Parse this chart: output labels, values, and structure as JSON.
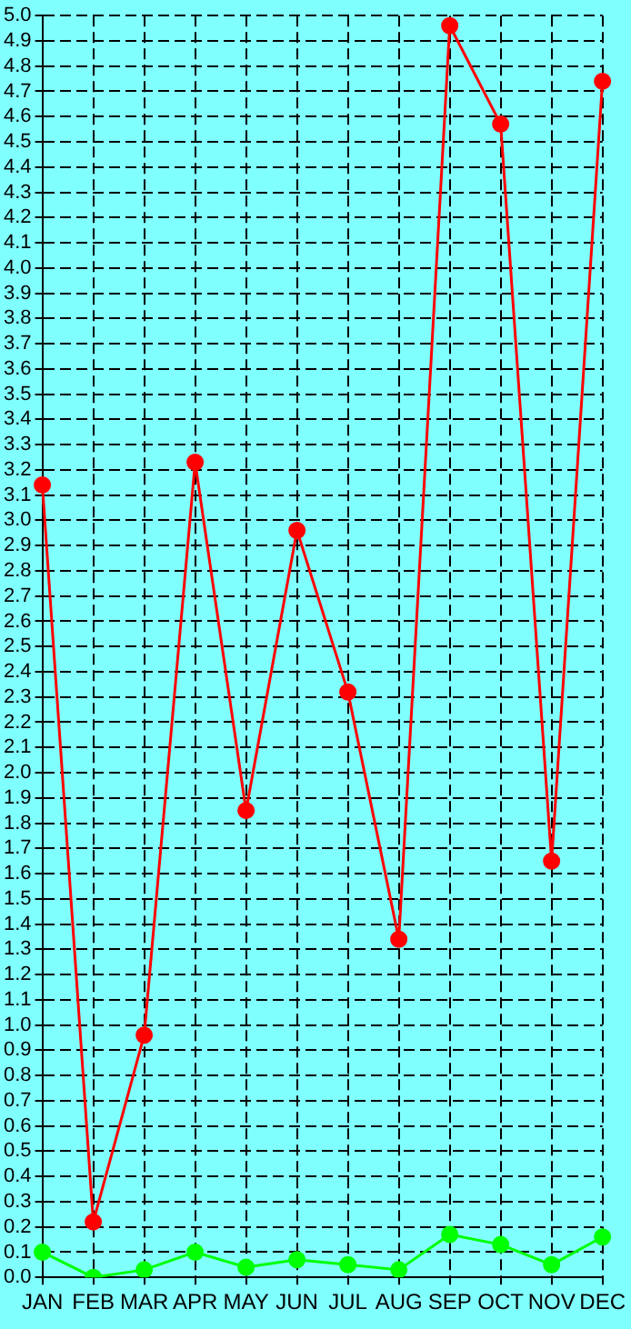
{
  "chart_data": {
    "type": "line",
    "categories": [
      "JAN",
      "FEB",
      "MAR",
      "APR",
      "MAY",
      "JUN",
      "JUL",
      "AUG",
      "SEP",
      "OCT",
      "NOV",
      "DEC"
    ],
    "series": [
      {
        "color": "#ff0000",
        "values": [
          3.14,
          0.22,
          0.96,
          3.23,
          1.85,
          2.96,
          2.32,
          1.34,
          4.96,
          4.57,
          1.65,
          4.74
        ]
      },
      {
        "color": "#00ff00",
        "values": [
          0.1,
          0.0,
          0.03,
          0.1,
          0.04,
          0.07,
          0.05,
          0.03,
          0.17,
          0.13,
          0.05,
          0.16
        ]
      }
    ],
    "ylim": [
      0,
      5.0
    ],
    "yticks": [
      {
        "value": 0,
        "label": "0.0"
      },
      0.1,
      0.2,
      0.3,
      0.4,
      0.5,
      0.6,
      0.7,
      0.8,
      0.9,
      {
        "value": 1,
        "label": "1.0"
      },
      1.1,
      1.2,
      1.3,
      1.4,
      1.5,
      1.6,
      1.7,
      1.8,
      1.9,
      {
        "value": 2,
        "label": "2.0"
      },
      2.1,
      2.2,
      2.3,
      2.4,
      2.5,
      2.6,
      2.7,
      2.8,
      2.9,
      {
        "value": 3,
        "label": "3.0"
      },
      3.1,
      3.2,
      3.3,
      3.4,
      3.5,
      3.6,
      3.7,
      3.8,
      3.9,
      {
        "value": 4,
        "label": "4.0"
      },
      4.1,
      4.2,
      4.3,
      4.4,
      4.5,
      4.6,
      4.7,
      4.8,
      4.9,
      {
        "value": 5,
        "label": "5.0"
      }
    ],
    "grid": true,
    "legend": false,
    "marker": "circle",
    "line_style": "solid"
  }
}
